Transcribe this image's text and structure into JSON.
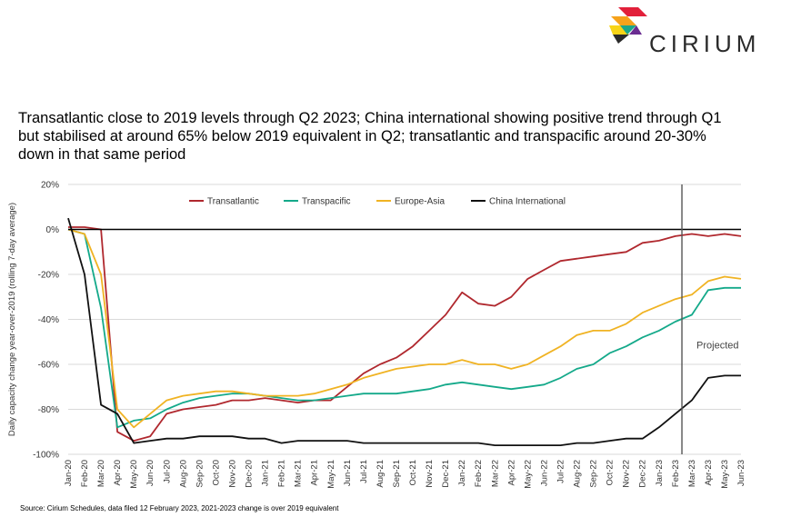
{
  "logo": {
    "text": "CIRIUM"
  },
  "title": "Transatlantic close to 2019 levels through Q2 2023; China international showing positive trend through Q1 but stabilised at around 65% below 2019 equivalent in Q2; transatlantic and transpacific around 20-30% down in that same period",
  "source": "Source: Cirium Schedules, data filed 12 February 2023, 2021-2023 change is over 2019 equivalent",
  "colors": {
    "transatlantic": "#b0282e",
    "transpacific": "#14a98a",
    "europe_asia": "#f0b323",
    "china": "#111111"
  },
  "chart_data": {
    "type": "line",
    "ylabel": "Daily capacity change year-over-2019 (rolling 7-day average)",
    "ylim": [
      -100,
      20
    ],
    "yticks": [
      "20%",
      "0%",
      "-20%",
      "-40%",
      "-60%",
      "-80%",
      "-100%"
    ],
    "ytick_values": [
      20,
      0,
      -20,
      -40,
      -60,
      -80,
      -100
    ],
    "categories": [
      "Jan-20",
      "Feb-20",
      "Mar-20",
      "Apr-20",
      "May-20",
      "Jun-20",
      "Jul-20",
      "Aug-20",
      "Sep-20",
      "Oct-20",
      "Nov-20",
      "Dec-20",
      "Jan-21",
      "Feb-21",
      "Mar-21",
      "Apr-21",
      "May-21",
      "Jun-21",
      "Jul-21",
      "Aug-21",
      "Sep-21",
      "Oct-21",
      "Nov-21",
      "Dec-21",
      "Jan-22",
      "Feb-22",
      "Mar-22",
      "Apr-22",
      "May-22",
      "Jun-22",
      "Jul-22",
      "Aug-22",
      "Sep-22",
      "Oct-22",
      "Nov-22",
      "Dec-22",
      "Jan-23",
      "Feb-23",
      "Mar-23",
      "Apr-23",
      "May-23",
      "Jun-23"
    ],
    "projected_start": "Feb-23",
    "projected_label": "Projected",
    "legend_position": "top",
    "grid": "horizontal",
    "series": [
      {
        "name": "Transatlantic",
        "key": "transatlantic",
        "values": [
          1,
          1,
          0,
          -90,
          -94,
          -92,
          -82,
          -80,
          -79,
          -78,
          -76,
          -76,
          -75,
          -76,
          -77,
          -76,
          -76,
          -70,
          -64,
          -60,
          -57,
          -52,
          -45,
          -38,
          -28,
          -33,
          -34,
          -30,
          -22,
          -18,
          -14,
          -13,
          -12,
          -11,
          -10,
          -6,
          -5,
          -3,
          -2,
          -3,
          -2,
          -3
        ]
      },
      {
        "name": "Transpacific",
        "key": "transpacific",
        "values": [
          0,
          -2,
          -35,
          -88,
          -85,
          -84,
          -80,
          -77,
          -75,
          -74,
          -73,
          -73,
          -74,
          -75,
          -76,
          -76,
          -75,
          -74,
          -73,
          -73,
          -73,
          -72,
          -71,
          -69,
          -68,
          -69,
          -70,
          -71,
          -70,
          -69,
          -66,
          -62,
          -60,
          -55,
          -52,
          -48,
          -45,
          -41,
          -38,
          -27,
          -26,
          -26
        ]
      },
      {
        "name": "Europe-Asia",
        "key": "europe_asia",
        "values": [
          0,
          -2,
          -20,
          -80,
          -88,
          -82,
          -76,
          -74,
          -73,
          -72,
          -72,
          -73,
          -74,
          -74,
          -74,
          -73,
          -71,
          -69,
          -66,
          -64,
          -62,
          -61,
          -60,
          -60,
          -58,
          -60,
          -60,
          -62,
          -60,
          -56,
          -52,
          -47,
          -45,
          -45,
          -42,
          -37,
          -34,
          -31,
          -29,
          -23,
          -21,
          -22
        ]
      },
      {
        "name": "China International",
        "key": "china",
        "values": [
          5,
          -20,
          -78,
          -82,
          -95,
          -94,
          -93,
          -93,
          -92,
          -92,
          -92,
          -93,
          -93,
          -95,
          -94,
          -94,
          -94,
          -94,
          -95,
          -95,
          -95,
          -95,
          -95,
          -95,
          -95,
          -95,
          -96,
          -96,
          -96,
          -96,
          -96,
          -95,
          -95,
          -94,
          -93,
          -93,
          -88,
          -82,
          -76,
          -66,
          -65,
          -65
        ]
      }
    ]
  }
}
